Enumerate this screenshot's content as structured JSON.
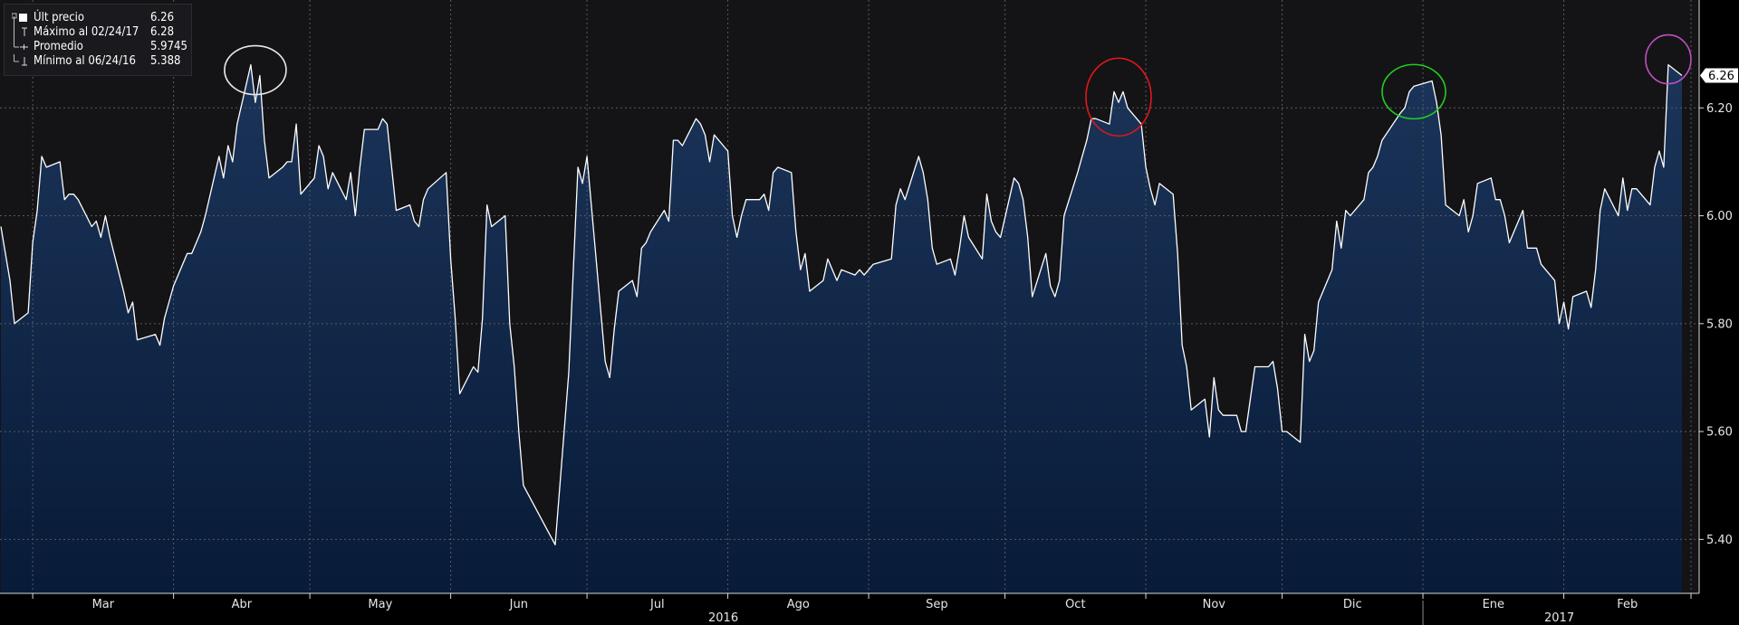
{
  "legend": {
    "items": [
      {
        "label": "Últ precio",
        "value": "6.26"
      },
      {
        "label": "Máximo al 02/24/17",
        "value": "6.28"
      },
      {
        "label": "Promedio",
        "value": "5.9745"
      },
      {
        "label": "Mínimo al 06/24/16",
        "value": "5.388"
      }
    ]
  },
  "last_price_tag": "6.26",
  "colors": {
    "background": "#000000",
    "plot_background": "#141416",
    "area_top": "#1b3459",
    "area_bottom": "#081b38",
    "line": "#ffffff",
    "grid": "#5a5a60",
    "circle_1": "#e8e8e8",
    "circle_2": "#e0161b",
    "circle_3": "#22cc22",
    "circle_4": "#c04fbf"
  },
  "chart_data": {
    "type": "area",
    "title": "",
    "xlabel": "",
    "ylabel": "",
    "ylim": [
      5.3,
      6.4
    ],
    "y_ticks": [
      "6.20",
      "6.00",
      "5.80",
      "5.60",
      "5.40"
    ],
    "x_months": [
      "Mar",
      "Abr",
      "May",
      "Jun",
      "Jul",
      "Ago",
      "Sep",
      "Oct",
      "Nov",
      "Dic",
      "Ene",
      "Feb"
    ],
    "x_years": [
      "2016",
      "2017"
    ],
    "grid": true,
    "legend_position": "top-left",
    "x_start": "2016-02-23",
    "x_end": "2017-02-28",
    "series": [
      {
        "name": "Últ precio",
        "points": [
          [
            "2016-02-23",
            5.98
          ],
          [
            "2016-02-24",
            5.93
          ],
          [
            "2016-02-25",
            5.88
          ],
          [
            "2016-02-26",
            5.8
          ],
          [
            "2016-02-29",
            5.82
          ],
          [
            "2016-03-01",
            5.95
          ],
          [
            "2016-03-02",
            6.01
          ],
          [
            "2016-03-03",
            6.11
          ],
          [
            "2016-03-04",
            6.09
          ],
          [
            "2016-03-07",
            6.1
          ],
          [
            "2016-03-08",
            6.03
          ],
          [
            "2016-03-09",
            6.04
          ],
          [
            "2016-03-10",
            6.04
          ],
          [
            "2016-03-11",
            6.03
          ],
          [
            "2016-03-14",
            5.98
          ],
          [
            "2016-03-15",
            5.99
          ],
          [
            "2016-03-16",
            5.96
          ],
          [
            "2016-03-17",
            6.0
          ],
          [
            "2016-03-18",
            5.96
          ],
          [
            "2016-03-21",
            5.86
          ],
          [
            "2016-03-22",
            5.82
          ],
          [
            "2016-03-23",
            5.84
          ],
          [
            "2016-03-24",
            5.77
          ],
          [
            "2016-03-28",
            5.78
          ],
          [
            "2016-03-29",
            5.76
          ],
          [
            "2016-03-30",
            5.81
          ],
          [
            "2016-03-31",
            5.84
          ],
          [
            "2016-04-01",
            5.87
          ],
          [
            "2016-04-04",
            5.93
          ],
          [
            "2016-04-05",
            5.93
          ],
          [
            "2016-04-06",
            5.95
          ],
          [
            "2016-04-07",
            5.97
          ],
          [
            "2016-04-08",
            6.0
          ],
          [
            "2016-04-11",
            6.11
          ],
          [
            "2016-04-12",
            6.07
          ],
          [
            "2016-04-13",
            6.13
          ],
          [
            "2016-04-14",
            6.1
          ],
          [
            "2016-04-15",
            6.17
          ],
          [
            "2016-04-18",
            6.28
          ],
          [
            "2016-04-19",
            6.21
          ],
          [
            "2016-04-20",
            6.26
          ],
          [
            "2016-04-21",
            6.14
          ],
          [
            "2016-04-22",
            6.07
          ],
          [
            "2016-04-25",
            6.09
          ],
          [
            "2016-04-26",
            6.1
          ],
          [
            "2016-04-27",
            6.1
          ],
          [
            "2016-04-28",
            6.17
          ],
          [
            "2016-04-29",
            6.04
          ],
          [
            "2016-05-02",
            6.07
          ],
          [
            "2016-05-03",
            6.13
          ],
          [
            "2016-05-04",
            6.11
          ],
          [
            "2016-05-05",
            6.05
          ],
          [
            "2016-05-06",
            6.08
          ],
          [
            "2016-05-09",
            6.03
          ],
          [
            "2016-05-10",
            6.08
          ],
          [
            "2016-05-11",
            6.0
          ],
          [
            "2016-05-12",
            6.09
          ],
          [
            "2016-05-13",
            6.16
          ],
          [
            "2016-05-16",
            6.16
          ],
          [
            "2016-05-17",
            6.18
          ],
          [
            "2016-05-18",
            6.17
          ],
          [
            "2016-05-19",
            6.09
          ],
          [
            "2016-05-20",
            6.01
          ],
          [
            "2016-05-23",
            6.02
          ],
          [
            "2016-05-24",
            5.99
          ],
          [
            "2016-05-25",
            5.98
          ],
          [
            "2016-05-26",
            6.03
          ],
          [
            "2016-05-27",
            6.05
          ],
          [
            "2016-05-31",
            6.08
          ],
          [
            "2016-06-01",
            5.92
          ],
          [
            "2016-06-02",
            5.81
          ],
          [
            "2016-06-03",
            5.67
          ],
          [
            "2016-06-06",
            5.72
          ],
          [
            "2016-06-07",
            5.71
          ],
          [
            "2016-06-08",
            5.81
          ],
          [
            "2016-06-09",
            6.02
          ],
          [
            "2016-06-10",
            5.98
          ],
          [
            "2016-06-13",
            6.0
          ],
          [
            "2016-06-14",
            5.8
          ],
          [
            "2016-06-15",
            5.72
          ],
          [
            "2016-06-16",
            5.6
          ],
          [
            "2016-06-17",
            5.5
          ],
          [
            "2016-06-24",
            5.39
          ],
          [
            "2016-06-27",
            5.71
          ],
          [
            "2016-06-28",
            5.9
          ],
          [
            "2016-06-29",
            6.09
          ],
          [
            "2016-06-30",
            6.06
          ],
          [
            "2016-07-01",
            6.11
          ],
          [
            "2016-07-05",
            5.73
          ],
          [
            "2016-07-06",
            5.7
          ],
          [
            "2016-07-07",
            5.79
          ],
          [
            "2016-07-08",
            5.86
          ],
          [
            "2016-07-11",
            5.88
          ],
          [
            "2016-07-12",
            5.85
          ],
          [
            "2016-07-13",
            5.94
          ],
          [
            "2016-07-14",
            5.95
          ],
          [
            "2016-07-15",
            5.97
          ],
          [
            "2016-07-18",
            6.01
          ],
          [
            "2016-07-19",
            5.99
          ],
          [
            "2016-07-20",
            6.14
          ],
          [
            "2016-07-21",
            6.14
          ],
          [
            "2016-07-22",
            6.13
          ],
          [
            "2016-07-25",
            6.18
          ],
          [
            "2016-07-26",
            6.17
          ],
          [
            "2016-07-27",
            6.15
          ],
          [
            "2016-07-28",
            6.1
          ],
          [
            "2016-07-29",
            6.15
          ],
          [
            "2016-08-01",
            6.12
          ],
          [
            "2016-08-02",
            6.0
          ],
          [
            "2016-08-03",
            5.96
          ],
          [
            "2016-08-04",
            6.0
          ],
          [
            "2016-08-05",
            6.03
          ],
          [
            "2016-08-08",
            6.03
          ],
          [
            "2016-08-09",
            6.04
          ],
          [
            "2016-08-10",
            6.01
          ],
          [
            "2016-08-11",
            6.08
          ],
          [
            "2016-08-12",
            6.09
          ],
          [
            "2016-08-15",
            6.08
          ],
          [
            "2016-08-16",
            5.97
          ],
          [
            "2016-08-17",
            5.9
          ],
          [
            "2016-08-18",
            5.93
          ],
          [
            "2016-08-19",
            5.86
          ],
          [
            "2016-08-22",
            5.88
          ],
          [
            "2016-08-23",
            5.92
          ],
          [
            "2016-08-24",
            5.9
          ],
          [
            "2016-08-25",
            5.88
          ],
          [
            "2016-08-26",
            5.9
          ],
          [
            "2016-08-29",
            5.89
          ],
          [
            "2016-08-30",
            5.9
          ],
          [
            "2016-08-31",
            5.89
          ],
          [
            "2016-09-01",
            5.9
          ],
          [
            "2016-09-02",
            5.91
          ],
          [
            "2016-09-06",
            5.92
          ],
          [
            "2016-09-07",
            6.02
          ],
          [
            "2016-09-08",
            6.05
          ],
          [
            "2016-09-09",
            6.03
          ],
          [
            "2016-09-12",
            6.11
          ],
          [
            "2016-09-13",
            6.08
          ],
          [
            "2016-09-14",
            6.03
          ],
          [
            "2016-09-15",
            5.94
          ],
          [
            "2016-09-16",
            5.91
          ],
          [
            "2016-09-19",
            5.92
          ],
          [
            "2016-09-20",
            5.89
          ],
          [
            "2016-09-21",
            5.94
          ],
          [
            "2016-09-22",
            6.0
          ],
          [
            "2016-09-23",
            5.96
          ],
          [
            "2016-09-26",
            5.92
          ],
          [
            "2016-09-27",
            6.04
          ],
          [
            "2016-09-28",
            5.99
          ],
          [
            "2016-09-29",
            5.97
          ],
          [
            "2016-09-30",
            5.96
          ],
          [
            "2016-10-03",
            6.07
          ],
          [
            "2016-10-04",
            6.06
          ],
          [
            "2016-10-05",
            6.03
          ],
          [
            "2016-10-06",
            5.96
          ],
          [
            "2016-10-07",
            5.85
          ],
          [
            "2016-10-10",
            5.93
          ],
          [
            "2016-10-11",
            5.87
          ],
          [
            "2016-10-12",
            5.85
          ],
          [
            "2016-10-13",
            5.88
          ],
          [
            "2016-10-14",
            6.0
          ],
          [
            "2016-10-17",
            6.08
          ],
          [
            "2016-10-18",
            6.11
          ],
          [
            "2016-10-19",
            6.14
          ],
          [
            "2016-10-20",
            6.18
          ],
          [
            "2016-10-21",
            6.18
          ],
          [
            "2016-10-24",
            6.17
          ],
          [
            "2016-10-25",
            6.23
          ],
          [
            "2016-10-26",
            6.21
          ],
          [
            "2016-10-27",
            6.23
          ],
          [
            "2016-10-28",
            6.2
          ],
          [
            "2016-10-31",
            6.17
          ],
          [
            "2016-11-01",
            6.09
          ],
          [
            "2016-11-02",
            6.05
          ],
          [
            "2016-11-03",
            6.02
          ],
          [
            "2016-11-04",
            6.06
          ],
          [
            "2016-11-07",
            6.04
          ],
          [
            "2016-11-08",
            5.93
          ],
          [
            "2016-11-09",
            5.76
          ],
          [
            "2016-11-10",
            5.72
          ],
          [
            "2016-11-11",
            5.64
          ],
          [
            "2016-11-14",
            5.66
          ],
          [
            "2016-11-15",
            5.59
          ],
          [
            "2016-11-16",
            5.7
          ],
          [
            "2016-11-17",
            5.64
          ],
          [
            "2016-11-18",
            5.63
          ],
          [
            "2016-11-21",
            5.63
          ],
          [
            "2016-11-22",
            5.6
          ],
          [
            "2016-11-23",
            5.6
          ],
          [
            "2016-11-25",
            5.72
          ],
          [
            "2016-11-28",
            5.72
          ],
          [
            "2016-11-29",
            5.73
          ],
          [
            "2016-11-30",
            5.68
          ],
          [
            "2016-12-01",
            5.6
          ],
          [
            "2016-12-02",
            5.6
          ],
          [
            "2016-12-05",
            5.58
          ],
          [
            "2016-12-06",
            5.78
          ],
          [
            "2016-12-07",
            5.73
          ],
          [
            "2016-12-08",
            5.75
          ],
          [
            "2016-12-09",
            5.84
          ],
          [
            "2016-12-12",
            5.9
          ],
          [
            "2016-12-13",
            5.99
          ],
          [
            "2016-12-14",
            5.94
          ],
          [
            "2016-12-15",
            6.01
          ],
          [
            "2016-12-16",
            6.0
          ],
          [
            "2016-12-19",
            6.03
          ],
          [
            "2016-12-20",
            6.08
          ],
          [
            "2016-12-21",
            6.09
          ],
          [
            "2016-12-22",
            6.11
          ],
          [
            "2016-12-23",
            6.14
          ],
          [
            "2016-12-27",
            6.19
          ],
          [
            "2016-12-28",
            6.2
          ],
          [
            "2016-12-29",
            6.23
          ],
          [
            "2016-12-30",
            6.24
          ],
          [
            "2017-01-03",
            6.25
          ],
          [
            "2017-01-04",
            6.21
          ],
          [
            "2017-01-05",
            6.15
          ],
          [
            "2017-01-06",
            6.02
          ],
          [
            "2017-01-09",
            6.0
          ],
          [
            "2017-01-10",
            6.03
          ],
          [
            "2017-01-11",
            5.97
          ],
          [
            "2017-01-12",
            6.0
          ],
          [
            "2017-01-13",
            6.06
          ],
          [
            "2017-01-16",
            6.07
          ],
          [
            "2017-01-17",
            6.03
          ],
          [
            "2017-01-18",
            6.03
          ],
          [
            "2017-01-19",
            6.0
          ],
          [
            "2017-01-20",
            5.95
          ],
          [
            "2017-01-23",
            6.01
          ],
          [
            "2017-01-24",
            5.94
          ],
          [
            "2017-01-25",
            5.94
          ],
          [
            "2017-01-26",
            5.94
          ],
          [
            "2017-01-27",
            5.91
          ],
          [
            "2017-01-30",
            5.88
          ],
          [
            "2017-01-31",
            5.8
          ],
          [
            "2017-02-01",
            5.84
          ],
          [
            "2017-02-02",
            5.79
          ],
          [
            "2017-02-03",
            5.85
          ],
          [
            "2017-02-06",
            5.86
          ],
          [
            "2017-02-07",
            5.83
          ],
          [
            "2017-02-08",
            5.9
          ],
          [
            "2017-02-09",
            6.01
          ],
          [
            "2017-02-10",
            6.05
          ],
          [
            "2017-02-13",
            6.0
          ],
          [
            "2017-02-14",
            6.07
          ],
          [
            "2017-02-15",
            6.01
          ],
          [
            "2017-02-16",
            6.05
          ],
          [
            "2017-02-17",
            6.05
          ],
          [
            "2017-02-20",
            6.02
          ],
          [
            "2017-02-21",
            6.09
          ],
          [
            "2017-02-22",
            6.12
          ],
          [
            "2017-02-23",
            6.09
          ],
          [
            "2017-02-24",
            6.28
          ],
          [
            "2017-02-27",
            6.26
          ]
        ]
      }
    ],
    "highlights": [
      {
        "date": "2016-04-19",
        "value": 6.27,
        "color": "#e8e8e8"
      },
      {
        "date": "2016-10-26",
        "value": 6.22,
        "color": "#e0161b"
      },
      {
        "date": "2016-12-30",
        "value": 6.23,
        "color": "#22cc22"
      },
      {
        "date": "2017-02-24",
        "value": 6.29,
        "color": "#c04fbf"
      }
    ]
  }
}
